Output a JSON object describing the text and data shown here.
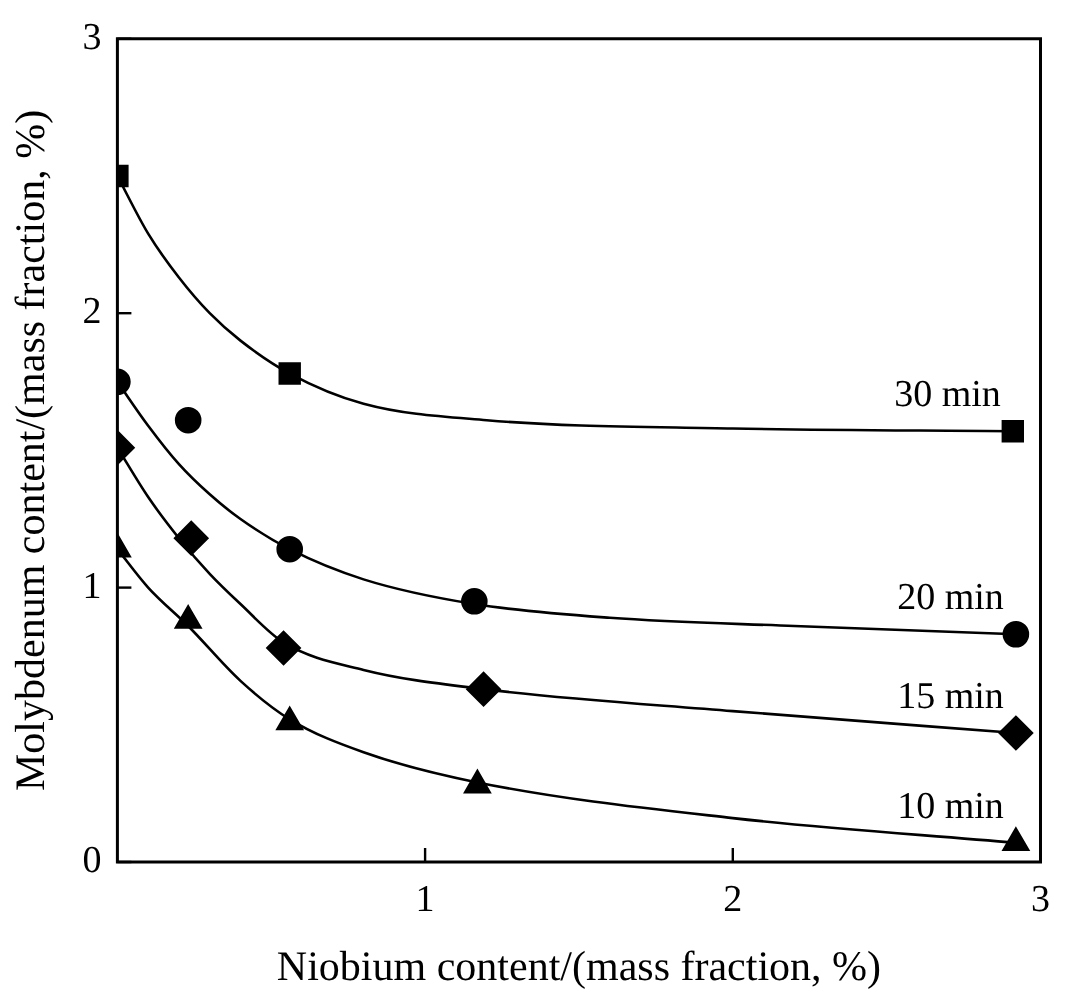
{
  "chart_data": {
    "type": "scatter",
    "xlabel": "Niobium content/(mass fraction, %)",
    "ylabel": "Molybdenum content/(mass fraction, %)",
    "xlim": [
      0,
      3
    ],
    "ylim": [
      0,
      3
    ],
    "xticks": [
      1,
      2,
      3
    ],
    "yticks": [
      0,
      1,
      2,
      3
    ],
    "grid": false,
    "legend": false,
    "series": [
      {
        "name": "30 min",
        "color": "#000000",
        "marker": "square",
        "x": [
          0,
          0.56,
          2.91
        ],
        "values": [
          2.5,
          1.78,
          1.57
        ]
      },
      {
        "name": "20 min",
        "color": "#000000",
        "marker": "circle",
        "x": [
          0,
          0.23,
          0.56,
          1.16,
          2.92
        ],
        "values": [
          1.75,
          1.61,
          1.14,
          0.95,
          0.83
        ]
      },
      {
        "name": "15 min",
        "color": "#000000",
        "marker": "diamond",
        "x": [
          0,
          0.24,
          0.54,
          1.19,
          2.92
        ],
        "values": [
          1.51,
          1.18,
          0.78,
          0.63,
          0.47
        ]
      },
      {
        "name": "10 min",
        "color": "#000000",
        "marker": "triangle",
        "x": [
          0,
          0.23,
          0.56,
          1.17,
          2.92
        ],
        "values": [
          1.14,
          0.88,
          0.51,
          0.28,
          0.07
        ]
      },
      {
        "type": "line",
        "color": "#000000",
        "marker": "none",
        "x": [
          0,
          0.1,
          0.2,
          0.3,
          0.4,
          0.56,
          0.8,
          1.2,
          2,
          2.91
        ],
        "values": [
          2.5,
          2.29,
          2.13,
          2.0,
          1.9,
          1.78,
          1.67,
          1.61,
          1.58,
          1.57
        ]
      },
      {
        "type": "line",
        "color": "#000000",
        "marker": "none",
        "x": [
          0,
          0.1,
          0.2,
          0.3,
          0.4,
          0.56,
          0.8,
          1.16,
          1.6,
          2.2,
          2.92
        ],
        "values": [
          1.75,
          1.59,
          1.45,
          1.34,
          1.25,
          1.14,
          1.03,
          0.94,
          0.89,
          0.86,
          0.83
        ]
      },
      {
        "type": "line",
        "color": "#000000",
        "marker": "none",
        "x": [
          0,
          0.1,
          0.2,
          0.3,
          0.4,
          0.54,
          0.8,
          1.19,
          2,
          2.92
        ],
        "values": [
          1.51,
          1.33,
          1.18,
          1.05,
          0.94,
          0.8,
          0.7,
          0.63,
          0.55,
          0.47
        ]
      },
      {
        "type": "line",
        "color": "#000000",
        "marker": "none",
        "x": [
          0,
          0.1,
          0.23,
          0.4,
          0.56,
          0.8,
          1.17,
          2,
          2.92
        ],
        "values": [
          1.14,
          1.0,
          0.86,
          0.66,
          0.52,
          0.4,
          0.29,
          0.16,
          0.07
        ]
      }
    ]
  }
}
